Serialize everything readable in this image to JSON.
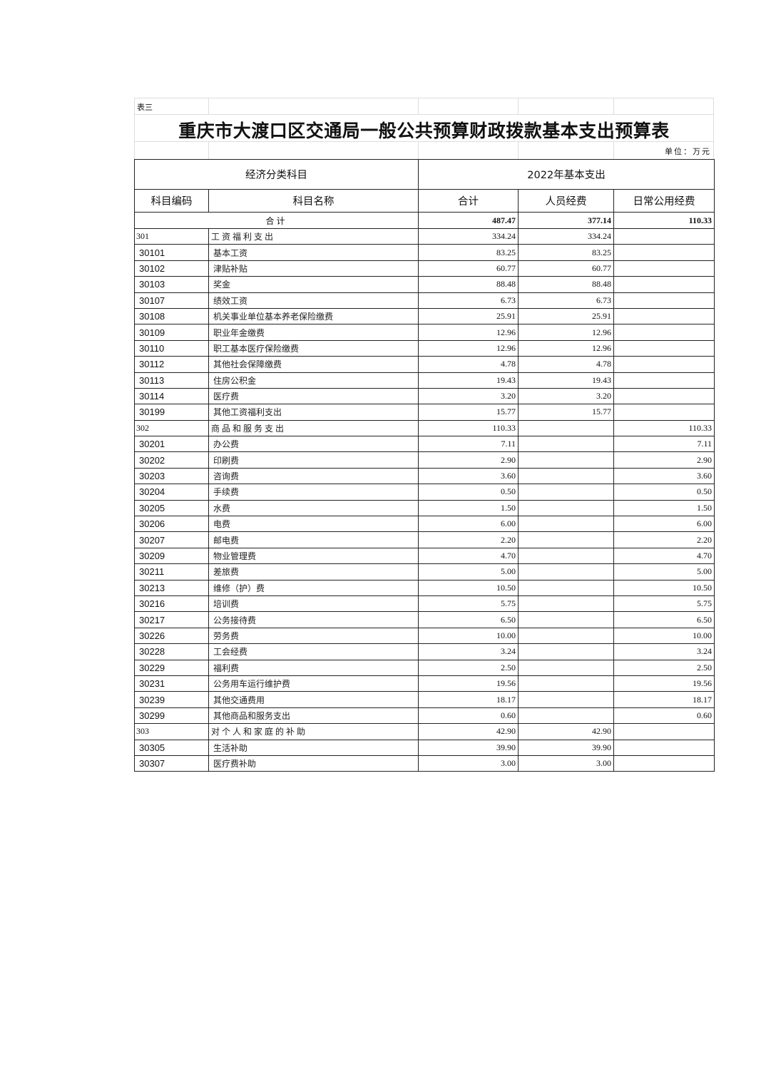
{
  "table_label": "表三",
  "title": "重庆市大渡口区交通局一般公共预算财政拨款基本支出预算表",
  "unit": "单位：万元",
  "headers": {
    "group_left": "经济分类科目",
    "group_right": "2022年基本支出",
    "code": "科目编码",
    "name": "科目名称",
    "total": "合计",
    "personnel": "人员经费",
    "public": "日常公用经费"
  },
  "total_row": {
    "label": "合计",
    "total": "487.47",
    "personnel": "377.14",
    "public": "110.33"
  },
  "rows": [
    {
      "code": "301",
      "name": "工资福利支出",
      "total": "334.24",
      "personnel": "334.24",
      "public": "",
      "level": 1
    },
    {
      "code": "30101",
      "name": "基本工资",
      "total": "83.25",
      "personnel": "83.25",
      "public": ""
    },
    {
      "code": "30102",
      "name": "津贴补贴",
      "total": "60.77",
      "personnel": "60.77",
      "public": ""
    },
    {
      "code": "30103",
      "name": "奖金",
      "total": "88.48",
      "personnel": "88.48",
      "public": ""
    },
    {
      "code": "30107",
      "name": "绩效工资",
      "total": "6.73",
      "personnel": "6.73",
      "public": ""
    },
    {
      "code": "30108",
      "name": "机关事业单位基本养老保险缴费",
      "total": "25.91",
      "personnel": "25.91",
      "public": ""
    },
    {
      "code": "30109",
      "name": "职业年金缴费",
      "total": "12.96",
      "personnel": "12.96",
      "public": ""
    },
    {
      "code": "30110",
      "name": "职工基本医疗保险缴费",
      "total": "12.96",
      "personnel": "12.96",
      "public": ""
    },
    {
      "code": "30112",
      "name": "其他社会保障缴费",
      "total": "4.78",
      "personnel": "4.78",
      "public": ""
    },
    {
      "code": "30113",
      "name": "住房公积金",
      "total": "19.43",
      "personnel": "19.43",
      "public": ""
    },
    {
      "code": "30114",
      "name": "医疗费",
      "total": "3.20",
      "personnel": "3.20",
      "public": ""
    },
    {
      "code": "30199",
      "name": "其他工资福利支出",
      "total": "15.77",
      "personnel": "15.77",
      "public": ""
    },
    {
      "code": "302",
      "name": "商品和服务支出",
      "total": "110.33",
      "personnel": "",
      "public": "110.33",
      "level": 1
    },
    {
      "code": "30201",
      "name": "办公费",
      "total": "7.11",
      "personnel": "",
      "public": "7.11"
    },
    {
      "code": "30202",
      "name": "印刷费",
      "total": "2.90",
      "personnel": "",
      "public": "2.90"
    },
    {
      "code": "30203",
      "name": "咨询费",
      "total": "3.60",
      "personnel": "",
      "public": "3.60"
    },
    {
      "code": "30204",
      "name": "手续费",
      "total": "0.50",
      "personnel": "",
      "public": "0.50"
    },
    {
      "code": "30205",
      "name": "水费",
      "total": "1.50",
      "personnel": "",
      "public": "1.50"
    },
    {
      "code": "30206",
      "name": "电费",
      "total": "6.00",
      "personnel": "",
      "public": "6.00"
    },
    {
      "code": "30207",
      "name": "邮电费",
      "total": "2.20",
      "personnel": "",
      "public": "2.20"
    },
    {
      "code": "30209",
      "name": "物业管理费",
      "total": "4.70",
      "personnel": "",
      "public": "4.70"
    },
    {
      "code": "30211",
      "name": "差旅费",
      "total": "5.00",
      "personnel": "",
      "public": "5.00"
    },
    {
      "code": "30213",
      "name": "维修（护）费",
      "total": "10.50",
      "personnel": "",
      "public": "10.50"
    },
    {
      "code": "30216",
      "name": "培训费",
      "total": "5.75",
      "personnel": "",
      "public": "5.75"
    },
    {
      "code": "30217",
      "name": "公务接待费",
      "total": "6.50",
      "personnel": "",
      "public": "6.50"
    },
    {
      "code": "30226",
      "name": "劳务费",
      "total": "10.00",
      "personnel": "",
      "public": "10.00"
    },
    {
      "code": "30228",
      "name": "工会经费",
      "total": "3.24",
      "personnel": "",
      "public": "3.24"
    },
    {
      "code": "30229",
      "name": "福利费",
      "total": "2.50",
      "personnel": "",
      "public": "2.50"
    },
    {
      "code": "30231",
      "name": "公务用车运行维护费",
      "total": "19.56",
      "personnel": "",
      "public": "19.56"
    },
    {
      "code": "30239",
      "name": "其他交通费用",
      "total": "18.17",
      "personnel": "",
      "public": "18.17"
    },
    {
      "code": "30299",
      "name": "其他商品和服务支出",
      "total": "0.60",
      "personnel": "",
      "public": "0.60"
    },
    {
      "code": "303",
      "name": "对个人和家庭的补助",
      "total": "42.90",
      "personnel": "42.90",
      "public": "",
      "level": 1
    },
    {
      "code": "30305",
      "name": "生活补助",
      "total": "39.90",
      "personnel": "39.90",
      "public": ""
    },
    {
      "code": "30307",
      "name": "医疗费补助",
      "total": "3.00",
      "personnel": "3.00",
      "public": ""
    }
  ]
}
